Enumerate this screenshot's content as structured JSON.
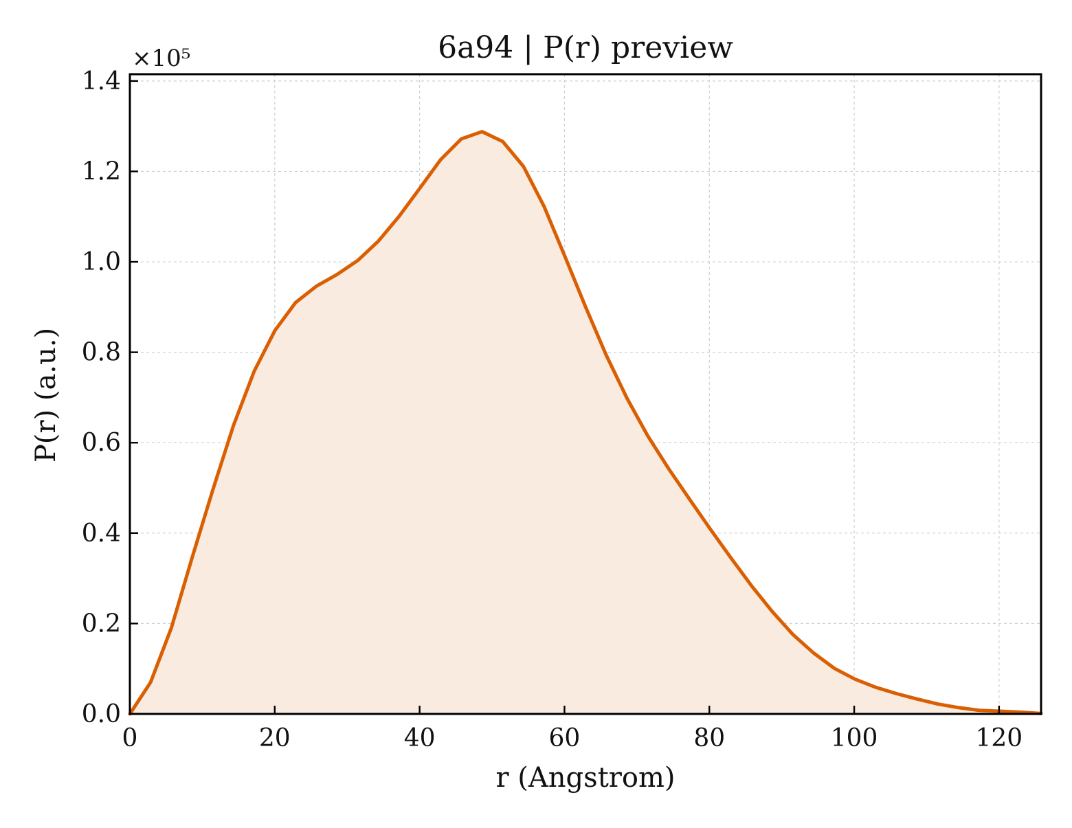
{
  "chart_data": {
    "type": "area",
    "title": "6a94 | P(r) preview",
    "xlabel": "r (Angstrom)",
    "ylabel": "P(r) (a.u.)",
    "y_multiplier_label": "×10⁵",
    "y_scale_factor": 100000,
    "xlim": [
      0,
      125.8
    ],
    "ylim": [
      0,
      1.415
    ],
    "xticks": [
      0,
      20,
      40,
      60,
      80,
      100,
      120
    ],
    "xtick_labels": [
      "0",
      "20",
      "40",
      "60",
      "80",
      "100",
      "120"
    ],
    "yticks": [
      0.0,
      0.2,
      0.4,
      0.6,
      0.8,
      1.0,
      1.2,
      1.4
    ],
    "ytick_labels": [
      "0.0",
      "0.2",
      "0.4",
      "0.6",
      "0.8",
      "1.0",
      "1.2",
      "1.4"
    ],
    "grid": true,
    "ticks_direction": "in",
    "colors": {
      "line": "#d95f02",
      "fill": "#f9ebe0",
      "grid": "#cfcfcf",
      "axes": "#000000"
    },
    "series": [
      {
        "x": [
          0,
          2.86,
          5.72,
          8.58,
          11.44,
          14.3,
          17.16,
          20.02,
          22.88,
          25.74,
          28.6,
          31.46,
          34.32,
          37.18,
          40.04,
          42.9,
          45.76,
          48.62,
          51.48,
          54.34,
          57.2,
          60.06,
          62.92,
          65.78,
          68.64,
          71.5,
          74.36,
          77.22,
          80.08,
          82.94,
          85.8,
          88.66,
          91.52,
          94.38,
          97.24,
          100.1,
          102.96,
          105.82,
          108.68,
          111.54,
          114.4,
          117.26,
          120.12,
          122.98,
          125.8
        ],
        "y": [
          0.0,
          0.07,
          0.19,
          0.345,
          0.495,
          0.638,
          0.758,
          0.848,
          0.91,
          0.946,
          0.972,
          1.003,
          1.046,
          1.101,
          1.163,
          1.226,
          1.272,
          1.288,
          1.266,
          1.211,
          1.122,
          1.012,
          0.9,
          0.793,
          0.698,
          0.615,
          0.543,
          0.476,
          0.41,
          0.346,
          0.284,
          0.227,
          0.176,
          0.135,
          0.101,
          0.077,
          0.059,
          0.045,
          0.033,
          0.022,
          0.014,
          0.008,
          0.006,
          0.004,
          0.001
        ]
      }
    ]
  }
}
